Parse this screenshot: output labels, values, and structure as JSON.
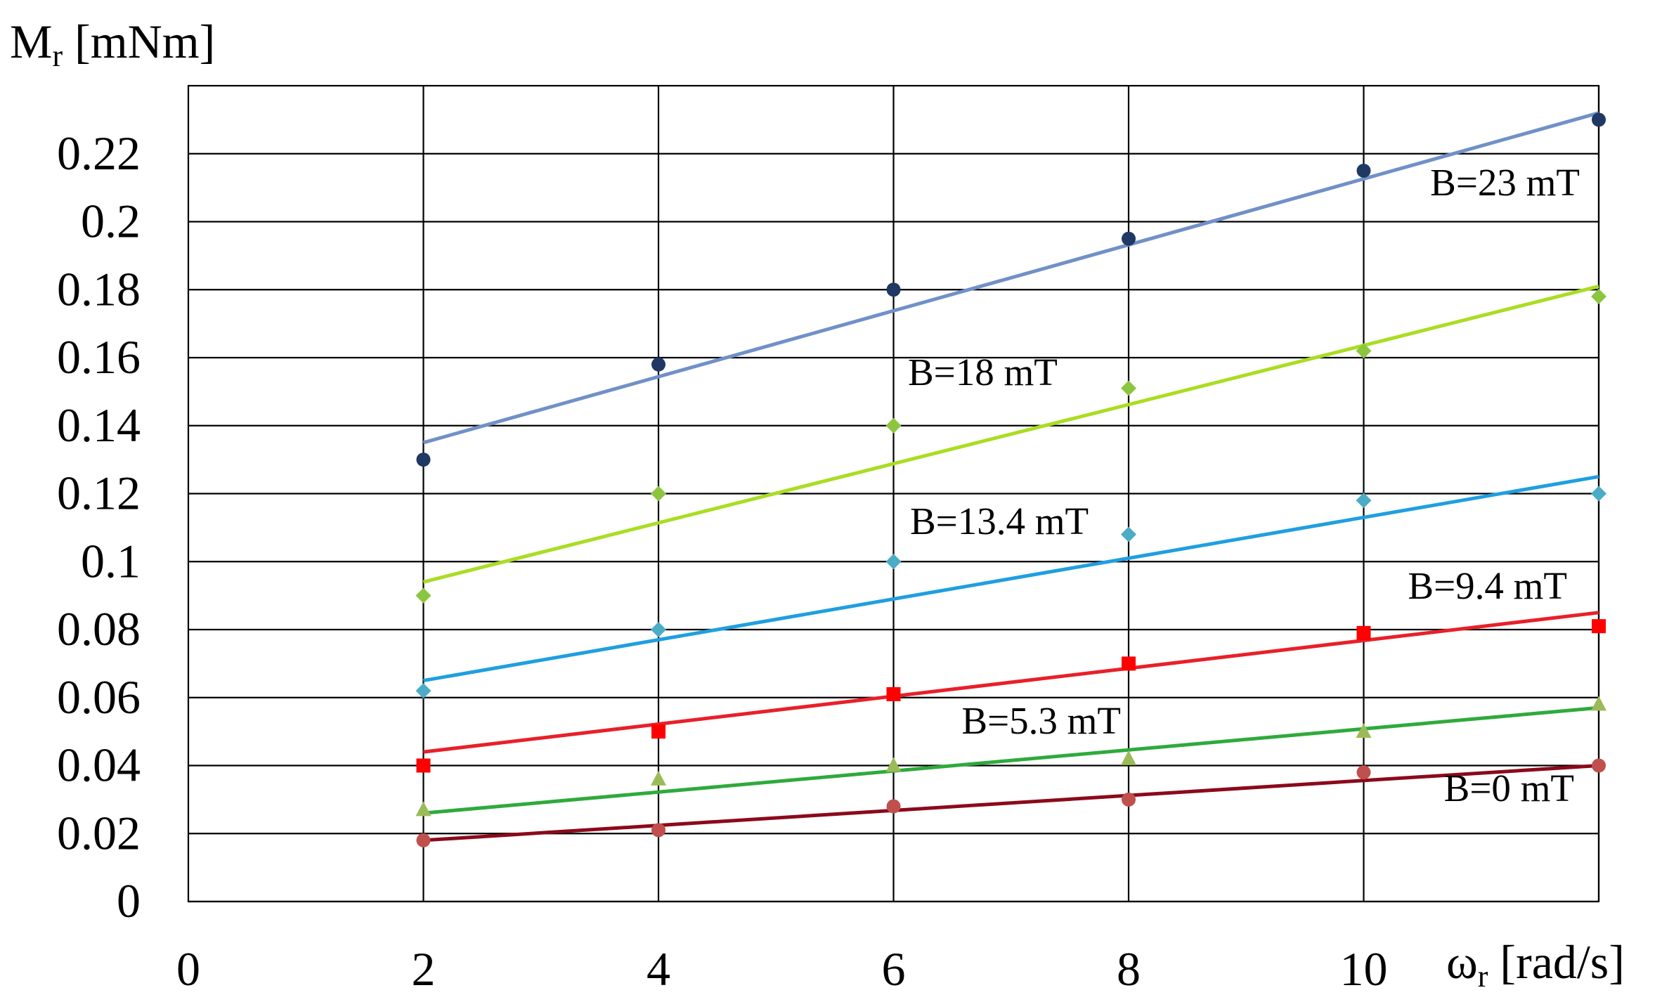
{
  "chart_data": {
    "type": "scatter",
    "title": "",
    "ylabel": {
      "main": "M",
      "sub": "r",
      "unit": " [mNm]"
    },
    "xlabel": {
      "main": "ω",
      "sub": "r",
      "unit": " [rad/s]"
    },
    "xlim": [
      0,
      12
    ],
    "ylim": [
      0,
      0.24
    ],
    "x_ticks": [
      "0",
      "2",
      "4",
      "6",
      "8",
      "10"
    ],
    "y_ticks": [
      "0",
      "0.02",
      "0.04",
      "0.06",
      "0.08",
      "0.1",
      "0.12",
      "0.14",
      "0.16",
      "0.18",
      "0.2",
      "0.22"
    ],
    "grid": true,
    "x": [
      2,
      4,
      6,
      8,
      10,
      12
    ],
    "series": [
      {
        "name": "B=0 mT",
        "marker": "circle",
        "point_color": "#c0504d",
        "line_color": "#8b0a1a",
        "values": [
          0.018,
          0.021,
          0.028,
          0.03,
          0.038,
          0.04
        ],
        "trend": [
          0.018,
          0.04
        ]
      },
      {
        "name": "B=5.3 mT",
        "marker": "triangle",
        "point_color": "#9bbb59",
        "line_color": "#2eaa3c",
        "values": [
          0.027,
          0.036,
          0.04,
          0.042,
          0.05,
          0.058
        ],
        "trend": [
          0.026,
          0.057
        ]
      },
      {
        "name": "B=9.4 mT",
        "marker": "square",
        "point_color": "#ff0000",
        "line_color": "#e8202a",
        "values": [
          0.04,
          0.05,
          0.061,
          0.07,
          0.079,
          0.081
        ],
        "trend": [
          0.044,
          0.085
        ]
      },
      {
        "name": "B=13.4 mT",
        "marker": "diamond",
        "point_color": "#4bacc6",
        "line_color": "#1f9fe0",
        "values": [
          0.062,
          0.08,
          0.1,
          0.108,
          0.118,
          0.12
        ],
        "trend": [
          0.065,
          0.125
        ]
      },
      {
        "name": "B=18 mT",
        "marker": "diamond",
        "point_color": "#8cc63f",
        "line_color": "#aadd22",
        "values": [
          0.09,
          0.12,
          0.14,
          0.151,
          0.162,
          0.178
        ],
        "trend": [
          0.094,
          0.181
        ]
      },
      {
        "name": "B=23 mT",
        "marker": "circle",
        "point_color": "#1f3864",
        "line_color": "#7090c8",
        "values": [
          0.13,
          0.158,
          0.18,
          0.195,
          0.215,
          0.23
        ],
        "trend": [
          0.135,
          0.232
        ]
      }
    ],
    "annotations": [
      "B=23 mT",
      "B=18 mT",
      "B=13.4 mT",
      "B=9.4 mT",
      "B=5.3 mT",
      "B=0 mT"
    ]
  }
}
